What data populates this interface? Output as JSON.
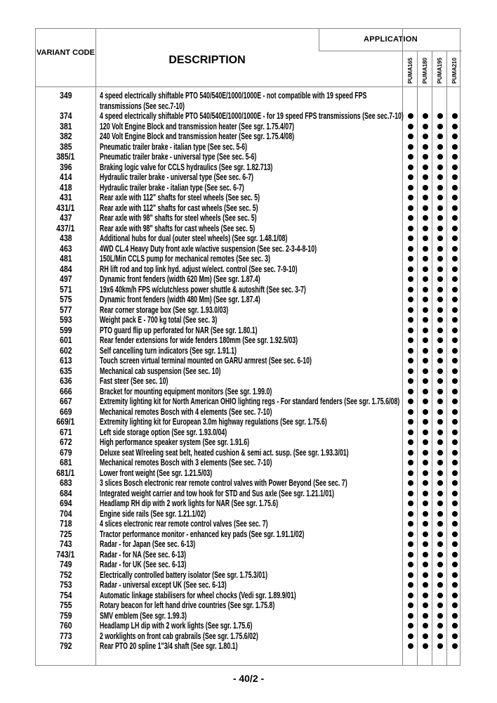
{
  "header": {
    "application": "APPLICATION",
    "variant_code": "VARIANT CODE",
    "description": "DESCRIPTION",
    "models": [
      "PUMA165",
      "PUMA180",
      "PUMA195",
      "PUMA210"
    ]
  },
  "rows": [
    {
      "code": "349",
      "desc": "4 speed electrically shiftable PTO 540/540E/1000/1000E - not compatible with 19 speed FPS transmissions (See sec.7-10)",
      "apps": [
        false,
        false,
        false,
        false
      ]
    },
    {
      "code": "374",
      "desc": "4 speed electrically shiftable PTO 540/540E/1000/1000E - for 19 speed FPS transmissions (See sec.7-10)",
      "apps": [
        true,
        true,
        true,
        true
      ]
    },
    {
      "code": "381",
      "desc": "120 Volt Engine Block and transmission heater (See sgr. 1.75.4/07)",
      "apps": [
        true,
        true,
        true,
        true
      ]
    },
    {
      "code": "382",
      "desc": "240 Volt Engine Block and transmission heater (See sgr. 1.75.4/08)",
      "apps": [
        true,
        true,
        true,
        true
      ]
    },
    {
      "code": "385",
      "desc": "Pneumatic trailer brake - italian type (See sec. 5-6)",
      "apps": [
        true,
        true,
        true,
        true
      ]
    },
    {
      "code": "385/1",
      "desc": "Pneumatic trailer brake - universal type (See sec. 5-6)",
      "apps": [
        true,
        true,
        true,
        true
      ]
    },
    {
      "code": "396",
      "desc": "Braking logic valve for CCLS hydraulics (See sgr. 1.82.713)",
      "apps": [
        true,
        true,
        true,
        true
      ]
    },
    {
      "code": "414",
      "desc": "Hydraulic trailer brake - universal type (See sec. 6-7)",
      "apps": [
        true,
        true,
        true,
        true
      ]
    },
    {
      "code": "418",
      "desc": "Hydraulic trailer brake - italian type (See sec. 6-7)",
      "apps": [
        true,
        true,
        true,
        true
      ]
    },
    {
      "code": "431",
      "desc": "Rear axle with 112\" shafts for steel wheels (See sec. 5)",
      "apps": [
        true,
        true,
        true,
        true
      ]
    },
    {
      "code": "431/1",
      "desc": "Rear axle with 112\" shafts for cast wheels (See sec. 5)",
      "apps": [
        true,
        true,
        true,
        true
      ]
    },
    {
      "code": "437",
      "desc": "Rear axle with 98\" shafts for steel wheels (See sec. 5)",
      "apps": [
        true,
        true,
        true,
        true
      ]
    },
    {
      "code": "437/1",
      "desc": "Rear axle with 98\" shafts for cast wheels (See sec. 5)",
      "apps": [
        true,
        true,
        true,
        true
      ]
    },
    {
      "code": "438",
      "desc": "Additional hubs for dual (outer steel wheels) (See sgr. 1.48.1/08)",
      "apps": [
        true,
        true,
        true,
        true
      ]
    },
    {
      "code": "463",
      "desc": "4WD CL.4 Heavy Duty front axle w/active suspension (See sec. 2-3-4-8-10)",
      "apps": [
        true,
        true,
        true,
        true
      ]
    },
    {
      "code": "481",
      "desc": "150L/Min CCLS pump for mechanical remotes (See sec. 3)",
      "apps": [
        true,
        true,
        true,
        true
      ]
    },
    {
      "code": "484",
      "desc": "RH lift rod and top link hyd. adjust w/elect. control (See sec. 7-9-10)",
      "apps": [
        true,
        true,
        true,
        true
      ]
    },
    {
      "code": "497",
      "desc": "Dynamic front fenders (width 620 Mm) (See sgr. 1.87.4)",
      "apps": [
        true,
        true,
        true,
        true
      ]
    },
    {
      "code": "571",
      "desc": "19x6 40km/h FPS w/clutchless power shuttle & autoshift (See sec. 3-7)",
      "apps": [
        true,
        true,
        true,
        true
      ]
    },
    {
      "code": "575",
      "desc": "Dynamic front fenders (width 480 Mm) (See sgr. 1.87.4)",
      "apps": [
        true,
        true,
        true,
        true
      ]
    },
    {
      "code": "577",
      "desc": "Rear corner storage box (See sgr. 1.93.0/03)",
      "apps": [
        true,
        true,
        true,
        true
      ]
    },
    {
      "code": "593",
      "desc": "Weight pack E - 700 kg total (See sec. 3)",
      "apps": [
        true,
        true,
        true,
        true
      ]
    },
    {
      "code": "599",
      "desc": "PTO guard flip up perforated for NAR (See sgr. 1.80.1)",
      "apps": [
        true,
        true,
        true,
        true
      ]
    },
    {
      "code": "601",
      "desc": "Rear fender extensions for wide fenders 180mm (See sgr. 1.92.5/03)",
      "apps": [
        true,
        true,
        true,
        true
      ]
    },
    {
      "code": "602",
      "desc": "Self cancelling turn indicators (See sgr. 1.91.1)",
      "apps": [
        true,
        true,
        true,
        true
      ]
    },
    {
      "code": "613",
      "desc": "Touch screen virtual terminal mounted on GARU armrest (See sec. 6-10)",
      "apps": [
        true,
        true,
        true,
        true
      ]
    },
    {
      "code": "635",
      "desc": "Mechanical cab suspension (See sec. 10)",
      "apps": [
        true,
        true,
        true,
        true
      ]
    },
    {
      "code": "636",
      "desc": "Fast steer (See sec. 10)",
      "apps": [
        true,
        true,
        true,
        true
      ]
    },
    {
      "code": "666",
      "desc": "Bracket for mounting equipment monitors (See sgr. 1.99.0)",
      "apps": [
        true,
        true,
        true,
        true
      ]
    },
    {
      "code": "667",
      "desc": "Extremity lighting kit for North American OHIO lighting regs - For standard fenders (See sgr. 1.75.6/08)",
      "apps": [
        true,
        true,
        true,
        true
      ]
    },
    {
      "code": "669",
      "desc": "Mechanical remotes Bosch with 4 elements (See sec. 7-10)",
      "apps": [
        true,
        true,
        true,
        true
      ]
    },
    {
      "code": "669/1",
      "desc": "Extremity lighting kit for European 3.0m highway regulations (See sgr. 1.75.6)",
      "apps": [
        true,
        true,
        true,
        true
      ]
    },
    {
      "code": "671",
      "desc": "Left side storage option (See sgr. 1.93.0/04)",
      "apps": [
        true,
        true,
        true,
        true
      ]
    },
    {
      "code": "672",
      "desc": "High performance speaker system (See sgr. 1.91.6)",
      "apps": [
        true,
        true,
        true,
        true
      ]
    },
    {
      "code": "679",
      "desc": "Deluxe seat W/reeling seat belt, heated cushion & semi act. susp. (See sgr. 1.93.3/01)",
      "apps": [
        true,
        true,
        true,
        true
      ]
    },
    {
      "code": "681",
      "desc": "Mechanical remotes Bosch with 3 elements (See sec. 7-10)",
      "apps": [
        true,
        true,
        true,
        true
      ]
    },
    {
      "code": "681/1",
      "desc": "Lower front weight (See sgr. 1.21.5/03)",
      "apps": [
        true,
        true,
        true,
        true
      ]
    },
    {
      "code": "683",
      "desc": "3 slices Bosch electronic rear remote control valves with Power Beyond (See sec. 7)",
      "apps": [
        true,
        true,
        true,
        true
      ]
    },
    {
      "code": "684",
      "desc": "Integrated weight carrier and tow hook for STD and Sus axle (See sgr. 1.21.1/01)",
      "apps": [
        true,
        true,
        true,
        true
      ]
    },
    {
      "code": "694",
      "desc": "Headlamp RH dip with 2 work lights for NAR (See sgr. 1.75.6)",
      "apps": [
        true,
        true,
        true,
        true
      ]
    },
    {
      "code": "704",
      "desc": "Engine side rails (See sgr. 1.21.1/02)",
      "apps": [
        true,
        true,
        true,
        true
      ]
    },
    {
      "code": "718",
      "desc": "4 slices electronic rear remote control valves (See sec. 7)",
      "apps": [
        true,
        true,
        true,
        true
      ]
    },
    {
      "code": "725",
      "desc": "Tractor performance monitor - enhanced key pads (See sgr. 1.91.1/02)",
      "apps": [
        true,
        true,
        true,
        true
      ]
    },
    {
      "code": "743",
      "desc": "Radar - for Japan (See sec. 6-13)",
      "apps": [
        true,
        true,
        true,
        true
      ]
    },
    {
      "code": "743/1",
      "desc": "Radar - for NA (See sec. 6-13)",
      "apps": [
        true,
        true,
        true,
        true
      ]
    },
    {
      "code": "749",
      "desc": "Radar - for UK (See sec. 6-13)",
      "apps": [
        true,
        true,
        true,
        true
      ]
    },
    {
      "code": "752",
      "desc": "Electrically controlled battery isolator (See sgr. 1.75.3/01)",
      "apps": [
        true,
        true,
        true,
        true
      ]
    },
    {
      "code": "753",
      "desc": "Radar - universal except UK (See sec. 6-13)",
      "apps": [
        true,
        true,
        true,
        true
      ]
    },
    {
      "code": "754",
      "desc": "Automatic linkage stabilisers for wheel chocks (Vedi sgr. 1.89.9/01)",
      "apps": [
        true,
        true,
        true,
        true
      ]
    },
    {
      "code": "755",
      "desc": "Rotary beacon for left hand drive countries (See sgr. 1.75.8)",
      "apps": [
        true,
        true,
        true,
        true
      ]
    },
    {
      "code": "759",
      "desc": "SMV emblem (See sgr. 1.99.3)",
      "apps": [
        true,
        true,
        true,
        true
      ]
    },
    {
      "code": "760",
      "desc": "Headlamp LH dip with 2 work lights (See sgr. 1.75.6)",
      "apps": [
        true,
        true,
        true,
        true
      ]
    },
    {
      "code": "773",
      "desc": "2 worklights on front cab grabrails (See sgr. 1.75.6/02)",
      "apps": [
        true,
        true,
        true,
        true
      ]
    },
    {
      "code": "792",
      "desc": "Rear PTO 20 spline 1\"3/4 shaft (See sgr. 1.80.1)",
      "apps": [
        true,
        true,
        true,
        true
      ]
    }
  ],
  "footer": {
    "page": "- 40/2 -"
  }
}
